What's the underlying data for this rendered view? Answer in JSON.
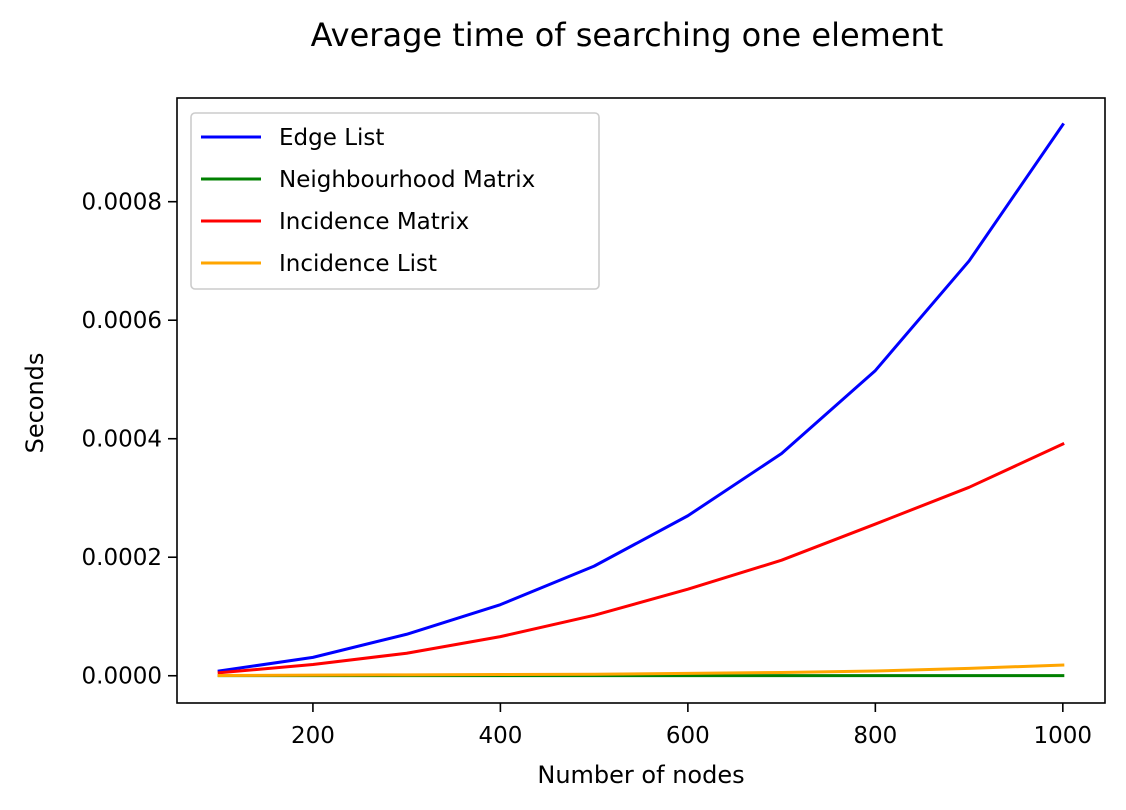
{
  "chart_data": {
    "type": "line",
    "title": "Average time of searching one element",
    "xlabel": "Number of nodes",
    "ylabel": "Seconds",
    "x": [
      100,
      200,
      300,
      400,
      500,
      600,
      700,
      800,
      900,
      1000
    ],
    "xlim": [
      55,
      1045
    ],
    "ylim": [
      -4.6e-05,
      0.000975
    ],
    "xticks": [
      200,
      400,
      600,
      800,
      1000
    ],
    "xtick_labels": [
      "200",
      "400",
      "600",
      "800",
      "1000"
    ],
    "yticks": [
      0,
      0.0002,
      0.0004,
      0.0006,
      0.0008
    ],
    "ytick_labels": [
      "0.0000",
      "0.0002",
      "0.0004",
      "0.0006",
      "0.0008"
    ],
    "grid": false,
    "legend_position": "top-left",
    "series": [
      {
        "name": "Edge List",
        "color": "#0000ff",
        "values": [
          8e-06,
          3.1e-05,
          7e-05,
          0.00012,
          0.000185,
          0.00027,
          0.000375,
          0.000515,
          0.0007,
          0.00093
        ]
      },
      {
        "name": "Neighbourhood Matrix",
        "color": "#008000",
        "values": [
          2e-07,
          2e-07,
          2e-07,
          2e-07,
          2e-07,
          2e-07,
          2e-07,
          2e-07,
          2e-07,
          2e-07
        ]
      },
      {
        "name": "Incidence Matrix",
        "color": "#ff0000",
        "values": [
          5e-06,
          1.9e-05,
          3.8e-05,
          6.6e-05,
          0.000102,
          0.000146,
          0.000195,
          0.000256,
          0.000318,
          0.000391
        ]
      },
      {
        "name": "Incidence List",
        "color": "#ffa500",
        "values": [
          5e-07,
          1e-06,
          1.5e-06,
          2e-06,
          2.5e-06,
          4e-06,
          5.5e-06,
          8e-06,
          1.25e-05,
          1.8e-05
        ]
      }
    ]
  }
}
